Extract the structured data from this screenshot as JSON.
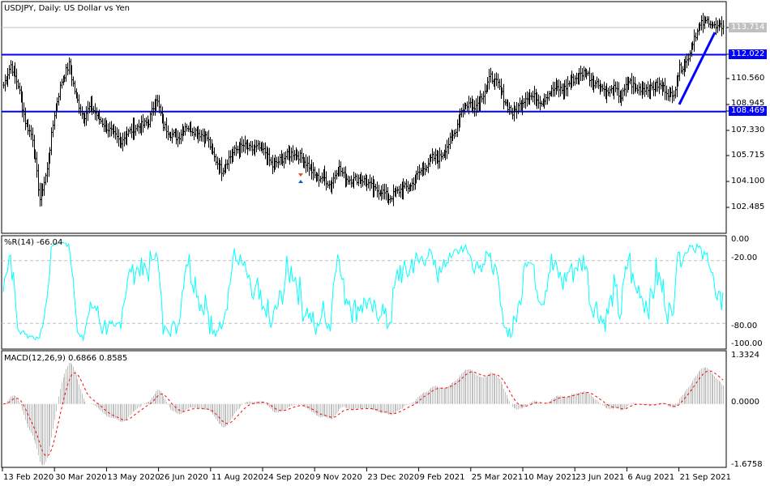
{
  "chart": {
    "title": "USDJPY, Daily:  US Dollar vs Yen",
    "current_price": "113.714",
    "levels": [
      {
        "value": "112.022",
        "color": "#0000ff"
      },
      {
        "value": "108.469",
        "color": "#0000ff"
      }
    ],
    "price_ticks": [
      "110.560",
      "108.945",
      "107.330",
      "105.715",
      "104.100",
      "102.485"
    ],
    "bar_color": "#000000",
    "trendline_color": "#0000ff"
  },
  "wpr": {
    "label": "%R(14) -66.04",
    "color": "#00ffff",
    "ticks": [
      "0.00",
      "-20.00",
      "-80.00",
      "-100.00"
    ]
  },
  "macd": {
    "label": "MACD(12,26,9) 0.6866 0.8585",
    "hist_color": "#c0c0c0",
    "signal_color": "#ff0000",
    "ticks": [
      "1.3324",
      "0.0000",
      "-1.6758"
    ],
    "range": [
      -1.6758,
      1.3324
    ]
  },
  "dates": [
    "13 Feb 2020",
    "30 Mar 2020",
    "13 May 2020",
    "26 Jun 2020",
    "11 Aug 2020",
    "24 Sep 2020",
    "9 Nov 2020",
    "23 Dec 2020",
    "9 Feb 2021",
    "25 Mar 2021",
    "10 May 2021",
    "23 Jun 2021",
    "6 Aug 2021",
    "21 Sep 2021"
  ],
  "chart_data": {
    "type": "ohlc",
    "symbol": "USDJPY",
    "timeframe": "Daily",
    "ylim": [
      101.0,
      114.6
    ],
    "closes_every_5_bars": [
      110.12,
      111.39,
      110.12,
      107.85,
      106.84,
      103.0,
      104.8,
      108.35,
      110.38,
      111.39,
      109.36,
      108.1,
      108.86,
      108.1,
      107.59,
      107.09,
      106.58,
      107.09,
      107.44,
      107.59,
      107.85,
      109.36,
      107.59,
      107.09,
      106.84,
      107.59,
      107.34,
      107.09,
      106.84,
      105.57,
      104.81,
      105.57,
      106.08,
      106.33,
      106.08,
      106.23,
      105.92,
      105.06,
      105.42,
      105.72,
      105.92,
      105.57,
      105.06,
      104.31,
      104.41,
      103.8,
      105.06,
      104.31,
      104.21,
      104.31,
      104.05,
      103.55,
      103.55,
      103.04,
      103.4,
      103.7,
      103.8,
      104.56,
      105.06,
      105.57,
      105.57,
      106.33,
      107.09,
      108.61,
      108.96,
      108.86,
      109.62,
      110.63,
      110.12,
      109.11,
      108.35,
      108.86,
      109.47,
      109.36,
      109.11,
      109.62,
      109.97,
      109.77,
      110.38,
      110.63,
      110.98,
      110.38,
      110.12,
      109.62,
      109.87,
      109.36,
      110.38,
      109.87,
      109.97,
      109.87,
      110.12,
      109.87,
      109.36,
      111.14,
      111.64,
      113.16,
      113.92,
      114.17,
      113.66,
      113.81
    ],
    "levels": [
      112.022,
      108.469
    ],
    "last": 113.714,
    "trendline": {
      "from": 108.91,
      "to": 113.41
    },
    "wpr_period": 14,
    "wpr_last": -66.04,
    "macd_params": [
      12,
      26,
      9
    ],
    "macd_last": 0.6866,
    "signal_last": 0.8585
  }
}
